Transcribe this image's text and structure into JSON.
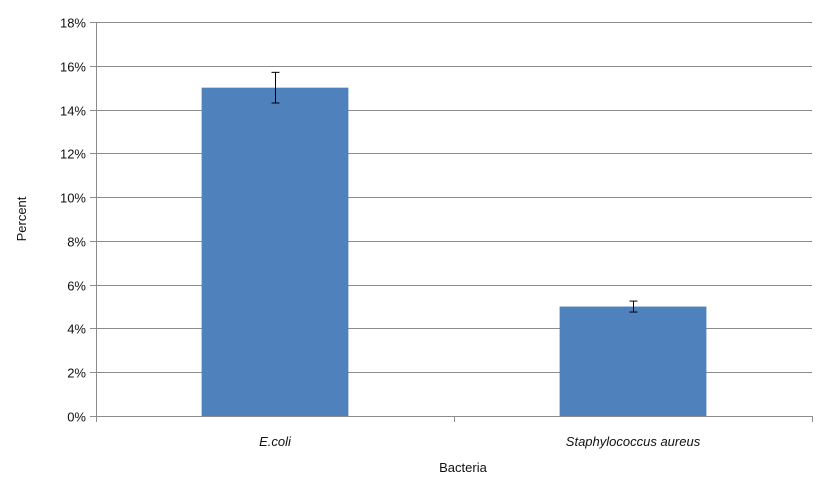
{
  "chart_data": {
    "type": "bar",
    "categories": [
      "E.coli",
      "Staphylococcus aureus"
    ],
    "values": [
      0.15,
      0.05
    ],
    "error": [
      0.007,
      0.0025
    ],
    "xlabel": "Bacteria",
    "ylabel": "Percent",
    "ylim": [
      0,
      0.18
    ],
    "yticks": [
      0,
      0.02,
      0.04,
      0.06,
      0.08,
      0.1,
      0.12,
      0.14,
      0.16,
      0.18
    ],
    "ytick_labels": [
      "0%",
      "2%",
      "4%",
      "6%",
      "8%",
      "10%",
      "12%",
      "14%",
      "16%",
      "18%"
    ],
    "grid": "horizontal",
    "bar_color": "#4f81bd",
    "legend": "none"
  }
}
